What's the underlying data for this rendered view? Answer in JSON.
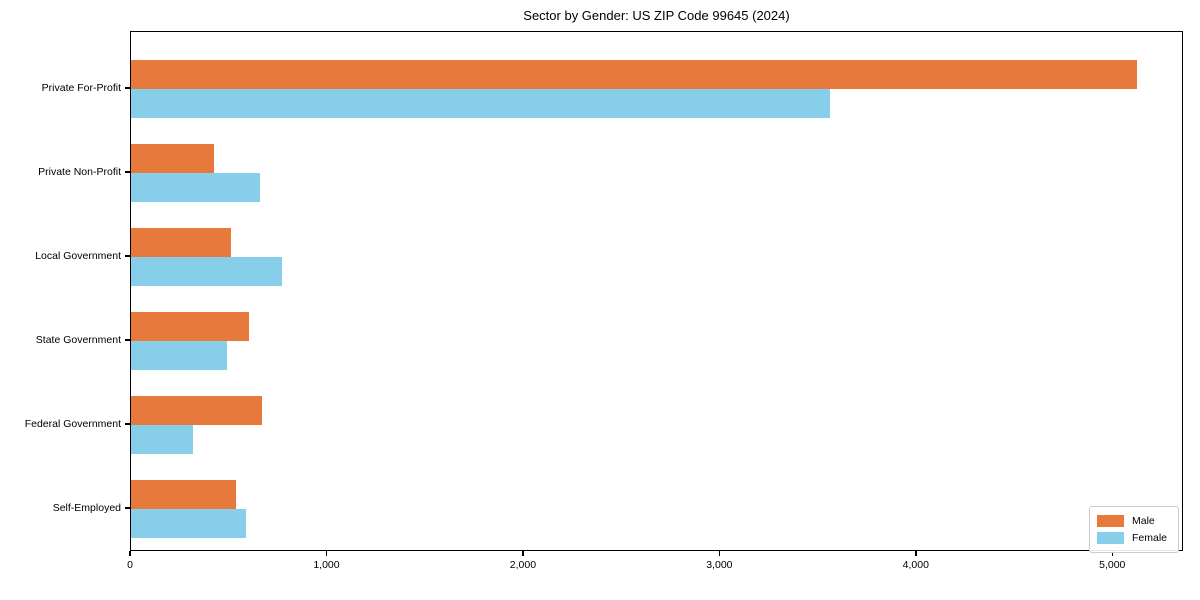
{
  "chart_data": {
    "type": "bar",
    "orientation": "horizontal",
    "title": "Sector by Gender: US ZIP Code 99645 (2024)",
    "xlabel": "",
    "ylabel": "",
    "categories": [
      "Private For-Profit",
      "Private Non-Profit",
      "Local Government",
      "State Government",
      "Federal Government",
      "Self-Employed"
    ],
    "series": [
      {
        "name": "Male",
        "color": "#e8793d",
        "values": [
          5120,
          420,
          510,
          600,
          665,
          535
        ]
      },
      {
        "name": "Female",
        "color": "#87ceeb",
        "values": [
          3560,
          655,
          770,
          490,
          315,
          585
        ]
      }
    ],
    "xlim": [
      0,
      5360
    ],
    "xticks": [
      0,
      1000,
      2000,
      3000,
      4000,
      5000
    ],
    "xtick_labels": [
      "0",
      "1,000",
      "2,000",
      "3,000",
      "4,000",
      "5,000"
    ],
    "grid": false,
    "legend_position": "lower right",
    "background_color": "#ffffff",
    "text_color": "#000000"
  }
}
